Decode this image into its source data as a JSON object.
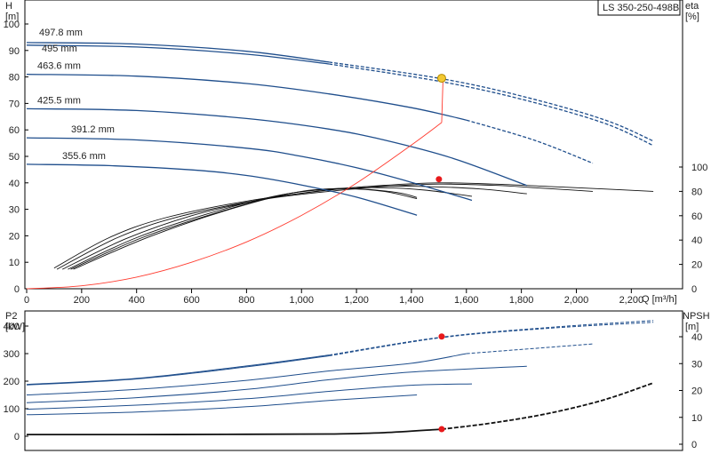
{
  "model_label": "LS 350-250-498B",
  "colors": {
    "blue": "#1f4e8c",
    "black": "#111111",
    "system": "#ff3b2f",
    "op_yellow": "#f2c832",
    "op_red": "#e8191b",
    "frame": "#000000"
  },
  "chart_data": [
    {
      "type": "line",
      "name": "head-and-efficiency",
      "y_axis_label": [
        "H",
        "[m]"
      ],
      "y2_axis_label": [
        "eta",
        "[%]"
      ],
      "x_axis_label": "Q [m³/h]",
      "xlim": [
        0,
        2380
      ],
      "ylim": [
        0,
        100
      ],
      "y2lim": [
        0,
        100
      ],
      "x_ticks": [
        "0",
        "200",
        "400",
        "600",
        "800",
        "1,000",
        "1,200",
        "1,400",
        "1,600",
        "1,800",
        "2,000",
        "2,200"
      ],
      "y_ticks": [
        "0",
        "10",
        "20",
        "30",
        "40",
        "50",
        "60",
        "70",
        "80",
        "90",
        "100"
      ],
      "y2_ticks": [
        "0",
        "20",
        "40",
        "60",
        "80",
        "100"
      ],
      "head_curves": [
        {
          "label": "497.8 mm",
          "points": [
            [
              0,
              93
            ],
            [
              400,
              92.4
            ],
            [
              800,
              89.7
            ],
            [
              1100,
              85.6
            ],
            [
              1500,
              79.5
            ],
            [
              1800,
              72.8
            ],
            [
              2100,
              63.9
            ],
            [
              2280,
              55.8
            ]
          ],
          "dashed_from": 1100
        },
        {
          "label": "495 mm",
          "points": [
            [
              0,
              92
            ],
            [
              400,
              91.3
            ],
            [
              800,
              88.6
            ],
            [
              1100,
              84.9
            ],
            [
              1500,
              78.4
            ],
            [
              1800,
              71.6
            ],
            [
              2100,
              62.6
            ],
            [
              2280,
              54.1
            ]
          ],
          "dashed_from": 1100
        },
        {
          "label": "463.6 mm",
          "points": [
            [
              0,
              81
            ],
            [
              400,
              80.3
            ],
            [
              800,
              77.5
            ],
            [
              1100,
              73.6
            ],
            [
              1400,
              68.4
            ],
            [
              1600,
              63.7
            ],
            [
              1850,
              56.0
            ],
            [
              2060,
              47.4
            ]
          ],
          "dashed_from": 1600
        },
        {
          "label": "425.5 mm",
          "points": [
            [
              0,
              68
            ],
            [
              400,
              67.3
            ],
            [
              800,
              64.3
            ],
            [
              1100,
              60.3
            ],
            [
              1300,
              56.2
            ],
            [
              1550,
              49.3
            ],
            [
              1820,
              39.0
            ]
          ],
          "dashed_from": null
        },
        {
          "label": "391.2 mm",
          "points": [
            [
              0,
              57
            ],
            [
              400,
              56.2
            ],
            [
              800,
              53.1
            ],
            [
              1000,
              50.0
            ],
            [
              1200,
              45.7
            ],
            [
              1400,
              40.2
            ],
            [
              1620,
              33.4
            ]
          ],
          "dashed_from": null
        },
        {
          "label": "355.6 mm",
          "points": [
            [
              0,
              47
            ],
            [
              300,
              46.5
            ],
            [
              600,
              44.9
            ],
            [
              800,
              42.8
            ],
            [
              1000,
              39.2
            ],
            [
              1200,
              34.6
            ],
            [
              1420,
              27.8
            ]
          ],
          "dashed_from": null
        }
      ],
      "efficiency_curves": [
        {
          "points": [
            [
              100,
              17
            ],
            [
              300,
              42
            ],
            [
              500,
              58
            ],
            [
              800,
              72
            ],
            [
              1100,
              81
            ],
            [
              1300,
              85
            ],
            [
              1500,
              87
            ],
            [
              1700,
              86
            ],
            [
              1900,
              84
            ],
            [
              2100,
              82
            ],
            [
              2280,
              80
            ]
          ]
        },
        {
          "points": [
            [
              110,
              16
            ],
            [
              330,
              42
            ],
            [
              550,
              59
            ],
            [
              850,
              73
            ],
            [
              1100,
              80
            ],
            [
              1300,
              84
            ],
            [
              1500,
              86
            ],
            [
              1700,
              85
            ],
            [
              1850,
              83
            ],
            [
              2060,
              80
            ]
          ]
        },
        {
          "points": [
            [
              130,
              16
            ],
            [
              360,
              41
            ],
            [
              600,
              60
            ],
            [
              850,
              73
            ],
            [
              1050,
              80
            ],
            [
              1250,
              84
            ],
            [
              1450,
              84
            ],
            [
              1650,
              82
            ],
            [
              1820,
              78
            ]
          ]
        },
        {
          "points": [
            [
              150,
              16
            ],
            [
              400,
              42
            ],
            [
              650,
              61
            ],
            [
              900,
              76
            ],
            [
              1100,
              82
            ],
            [
              1300,
              83
            ],
            [
              1450,
              81
            ],
            [
              1620,
              76
            ]
          ]
        },
        {
          "points": [
            [
              160,
              16
            ],
            [
              420,
              42
            ],
            [
              700,
              63
            ],
            [
              950,
              78
            ],
            [
              1150,
              82
            ],
            [
              1300,
              80
            ],
            [
              1420,
              74
            ]
          ]
        },
        {
          "points": [
            [
              170,
              16
            ],
            [
              450,
              43
            ],
            [
              750,
              66
            ],
            [
              1000,
              80
            ],
            [
              1200,
              82
            ],
            [
              1350,
              79
            ],
            [
              1420,
              75
            ]
          ]
        }
      ],
      "system_curve": [
        [
          0,
          0
        ],
        [
          200,
          1.1
        ],
        [
          400,
          4.4
        ],
        [
          600,
          10.0
        ],
        [
          800,
          17.7
        ],
        [
          1000,
          27.7
        ],
        [
          1200,
          39.9
        ],
        [
          1400,
          54.3
        ],
        [
          1510,
          62.8
        ],
        [
          1515,
          79.5
        ]
      ],
      "operating_point_head": [
        1510,
        79.5
      ],
      "operating_point_eta": [
        1500,
        90
      ]
    },
    {
      "type": "line",
      "name": "power-and-npsh",
      "y_axis_label": [
        "P2",
        "[kW]"
      ],
      "y2_axis_label": [
        "NPSH",
        "[m]"
      ],
      "xlim": [
        0,
        2380
      ],
      "ylim": [
        0,
        430
      ],
      "y2lim": [
        0,
        43
      ],
      "y_ticks": [
        "0",
        "100",
        "200",
        "300",
        "400"
      ],
      "y2_ticks": [
        "0",
        "10",
        "20",
        "30",
        "40"
      ],
      "power_curves": [
        {
          "points": [
            [
              0,
              188
            ],
            [
              400,
              210
            ],
            [
              800,
              255
            ],
            [
              1100,
              295
            ],
            [
              1510,
              360
            ],
            [
              1900,
              395
            ],
            [
              2280,
              420
            ]
          ],
          "dashed_from": 1100
        },
        {
          "points": [
            [
              0,
              186
            ],
            [
              400,
              208
            ],
            [
              800,
              252
            ],
            [
              1100,
              292
            ],
            [
              1510,
              358
            ],
            [
              1900,
              392
            ],
            [
              2280,
              414
            ]
          ],
          "dashed_from": 1100
        },
        {
          "points": [
            [
              0,
              150
            ],
            [
              400,
              170
            ],
            [
              800,
              203
            ],
            [
              1100,
              237
            ],
            [
              1400,
              265
            ],
            [
              1600,
              300
            ],
            [
              2060,
              335
            ]
          ],
          "dashed_from": 1600
        },
        {
          "points": [
            [
              0,
              122
            ],
            [
              400,
              140
            ],
            [
              800,
              170
            ],
            [
              1100,
              205
            ],
            [
              1400,
              233
            ],
            [
              1820,
              254
            ]
          ],
          "dashed_from": null
        },
        {
          "points": [
            [
              0,
              98
            ],
            [
              400,
              113
            ],
            [
              800,
              136
            ],
            [
              1100,
              163
            ],
            [
              1400,
              185
            ],
            [
              1620,
              190
            ]
          ],
          "dashed_from": null
        },
        {
          "points": [
            [
              0,
              78
            ],
            [
              400,
              88
            ],
            [
              800,
              107
            ],
            [
              1100,
              130
            ],
            [
              1420,
              150
            ]
          ],
          "dashed_from": null
        }
      ],
      "npsh_curve": [
        [
          0,
          3.6
        ],
        [
          400,
          3.6
        ],
        [
          800,
          3.7
        ],
        [
          1100,
          3.8
        ],
        [
          1300,
          4.3
        ],
        [
          1510,
          5.6
        ],
        [
          1700,
          8.0
        ],
        [
          1900,
          11.5
        ],
        [
          2100,
          16.5
        ],
        [
          2280,
          22.8
        ]
      ],
      "operating_point_power": [
        1510,
        362
      ],
      "operating_point_npsh": [
        1510,
        5.6
      ]
    }
  ]
}
